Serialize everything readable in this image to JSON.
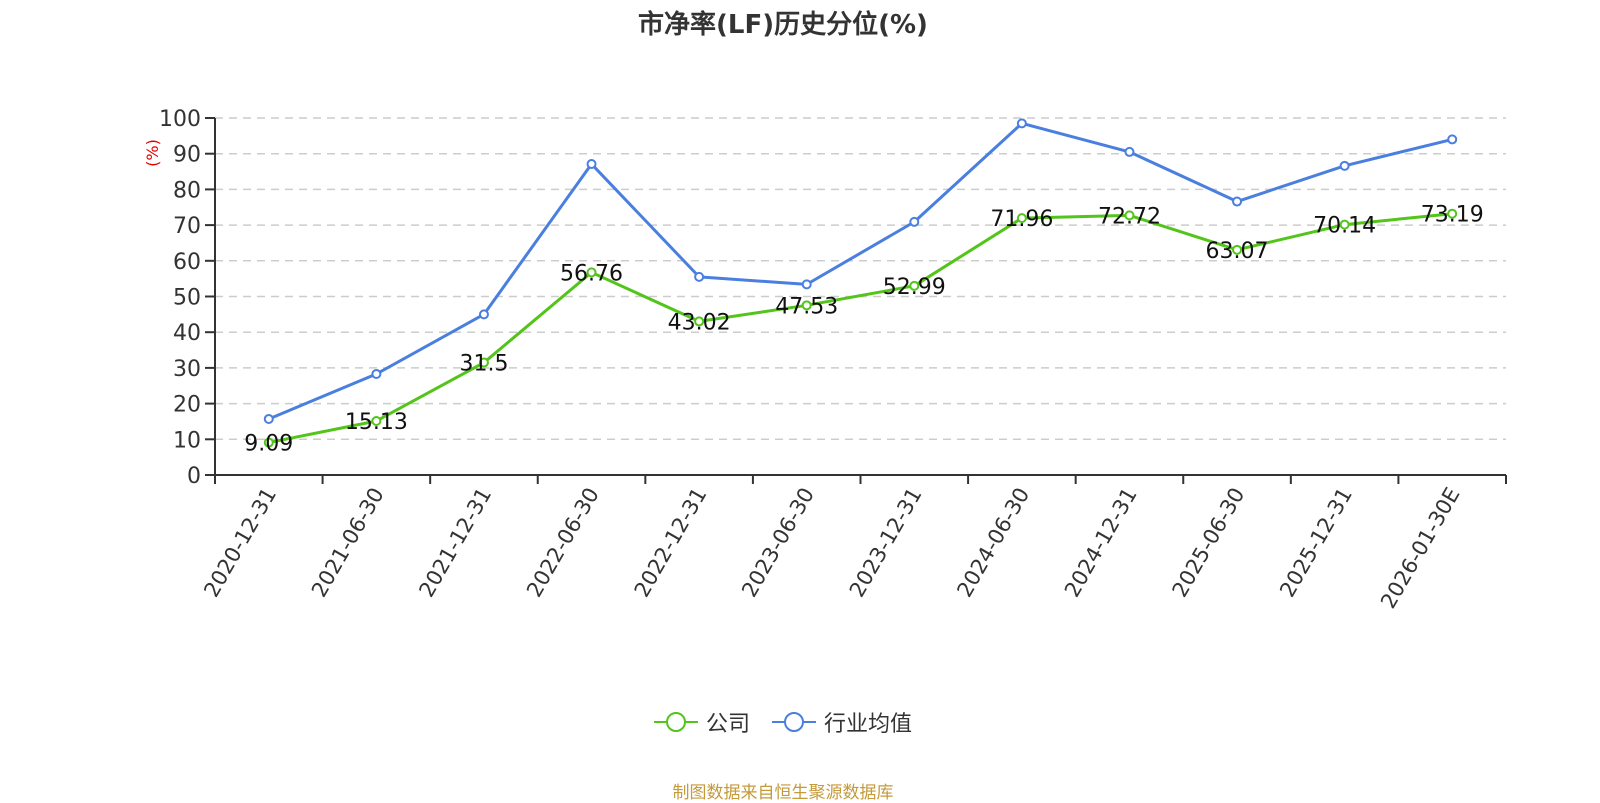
{
  "title": "市净率(LF)历史分位(%)",
  "source": "制图数据来自恒生聚源数据库",
  "colors": {
    "company": "#52c41a",
    "industry": "#4a7fe0",
    "axis_unit": "#e60000",
    "source": "#c49a3a"
  },
  "legend": [
    {
      "label": "公司",
      "color": "#52c41a"
    },
    {
      "label": "行业均值",
      "color": "#4a7fe0"
    }
  ],
  "chart_data": {
    "type": "line",
    "title": "市净率(LF)历史分位(%)",
    "xlabel": "",
    "ylabel": "(%)",
    "ylim": [
      0,
      100
    ],
    "yticks": [
      0,
      10,
      20,
      30,
      40,
      50,
      60,
      70,
      80,
      90,
      100
    ],
    "grid": true,
    "legend_position": "bottom",
    "categories": [
      "2020-12-31",
      "2021-06-30",
      "2021-12-31",
      "2022-06-30",
      "2022-12-31",
      "2023-06-30",
      "2023-12-31",
      "2024-06-30",
      "2024-12-31",
      "2025-06-30",
      "2025-12-31",
      "2026-01-30E"
    ],
    "series": [
      {
        "name": "公司",
        "values": [
          9.09,
          15.13,
          31.5,
          56.76,
          43.02,
          47.53,
          52.99,
          71.96,
          72.72,
          63.07,
          70.14,
          73.19
        ],
        "labels_shown": true
      },
      {
        "name": "行业均值",
        "values": [
          15.7,
          28.3,
          45.0,
          87.1,
          55.5,
          53.4,
          70.9,
          98.5,
          90.5,
          76.6,
          86.6,
          94.0
        ],
        "labels_shown": false
      }
    ]
  }
}
